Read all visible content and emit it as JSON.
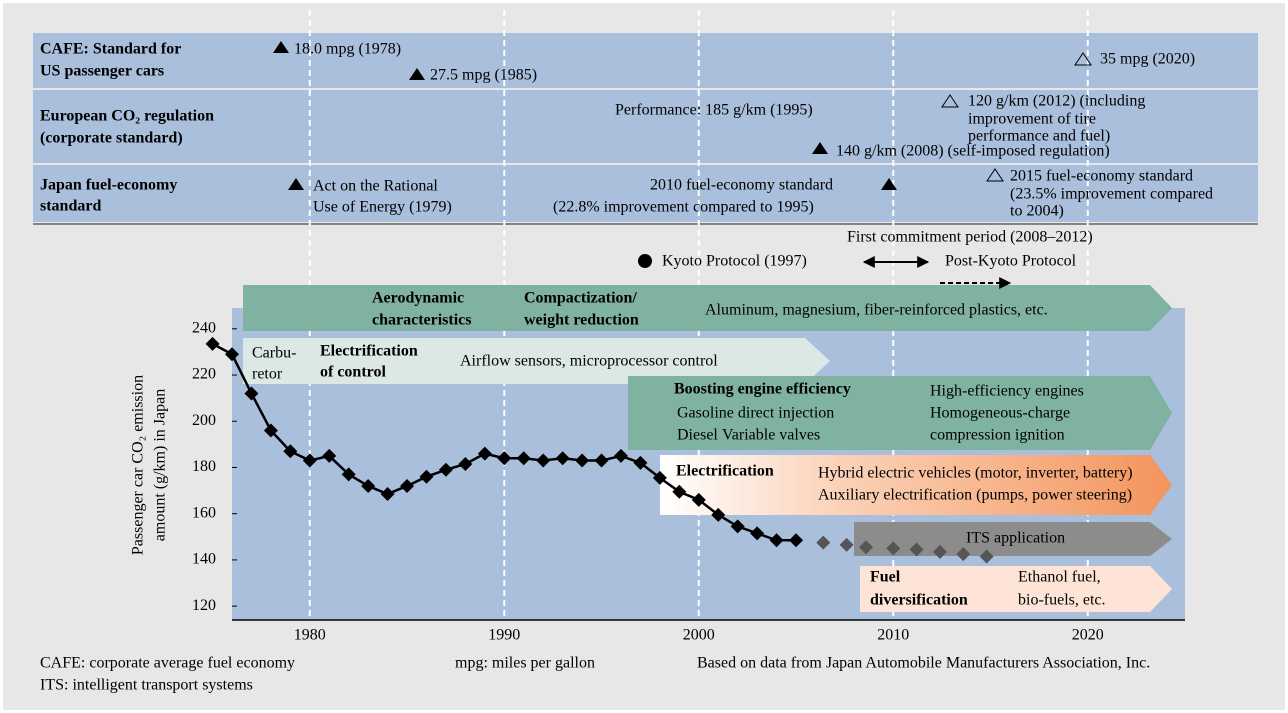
{
  "chart_data": {
    "type": "line",
    "y_label": [
      "Passenger car CO₂ emission",
      "amount (g/km) in Japan"
    ],
    "series": [
      {
        "color": "#000000",
        "x": [
          1975,
          1976,
          1977,
          1978,
          1979,
          1980,
          1981,
          1982,
          1983,
          1984,
          1985,
          1986,
          1987,
          1988,
          1989,
          1990,
          1991,
          1992,
          1993,
          1994,
          1995,
          1996,
          1997,
          1998,
          1999,
          2000,
          2001,
          2002,
          2003,
          2004,
          2005
        ],
        "values": [
          233.5,
          229,
          212,
          196,
          187,
          183,
          185,
          177,
          172,
          168.5,
          172,
          176,
          179,
          181.5,
          186,
          184,
          184,
          183,
          184,
          183,
          183,
          185,
          182,
          175.5,
          169.5,
          166,
          159.5,
          154.5,
          151.5,
          148.5,
          148.5
        ]
      },
      {
        "color": "#555555",
        "x": [
          2006.4,
          2007.6,
          2008.6,
          2010,
          2011.2,
          2012.4,
          2013.6,
          2014.8
        ],
        "values": [
          147.5,
          146.5,
          145.5,
          145,
          144.5,
          143.5,
          142.5,
          141.5
        ]
      }
    ],
    "xlim": [
      1976,
      2025
    ],
    "ylim": [
      114,
      249
    ],
    "xticks": [
      1980,
      1990,
      2000,
      2010,
      2020
    ],
    "yticks": [
      120,
      140,
      160,
      180,
      200,
      220,
      240
    ],
    "regulations": [
      {
        "label": [
          "CAFE: Standard for",
          "US passenger cars"
        ],
        "notes": [
          [
            "18.0 mpg (1978)"
          ],
          [
            "27.5 mpg (1985)"
          ],
          [
            "35 mpg (2020)"
          ]
        ]
      },
      {
        "label": [
          "European CO₂ regulation",
          "(corporate standard)"
        ],
        "notes": [
          [
            "Performance: 185 g/km (1995)"
          ],
          [
            "120 g/km (2012) (including",
            "improvement of tire",
            "performance and fuel)"
          ],
          [
            "140 g/km (2008) (self-imposed regulation)"
          ]
        ]
      },
      {
        "label": [
          "Japan fuel-economy",
          "standard"
        ],
        "notes": [
          [
            "Act on the Rational",
            "Use of Energy (1979)"
          ],
          [
            "2010 fuel-economy standard",
            "(22.8% improvement compared to 1995)"
          ],
          [
            "2015 fuel-economy standard",
            "(23.5% improvement compared",
            "to 2004)"
          ]
        ]
      }
    ],
    "kyoto": {
      "protocol": "Kyoto Protocol (1997)",
      "commitment": "First commitment period (2008–2012)",
      "post": "Post-Kyoto Protocol"
    },
    "technologies": [
      {
        "texts": [
          "Aerodynamic",
          "characteristics",
          "Compactization/",
          "weight reduction",
          "Aluminum, magnesium, fiber-reinforced plastics, etc."
        ]
      },
      {
        "texts": [
          "Carbu-",
          "retor",
          "Electrification",
          "of control",
          "Airflow sensors, microprocessor control"
        ]
      },
      {
        "texts": [
          "Boosting engine efficiency",
          "Gasoline direct injection",
          "Diesel",
          "Variable valves",
          "High-efficiency engines",
          "Homogeneous-charge",
          "compression ignition"
        ]
      },
      {
        "texts": [
          "Electrification",
          "Hybrid electric vehicles (motor, inverter, battery)",
          "Auxiliary electrification (pumps, power steering)"
        ]
      },
      {
        "texts": [
          "ITS application"
        ]
      },
      {
        "texts": [
          "Fuel",
          "diversification",
          "Ethanol fuel,",
          "bio-fuels, etc."
        ]
      }
    ],
    "footnotes": [
      "CAFE: corporate average fuel economy",
      "mpg: miles per gallon",
      "ITS: intelligent transport systems",
      "Based on data from Japan Automobile Manufacturers Association, Inc."
    ]
  }
}
